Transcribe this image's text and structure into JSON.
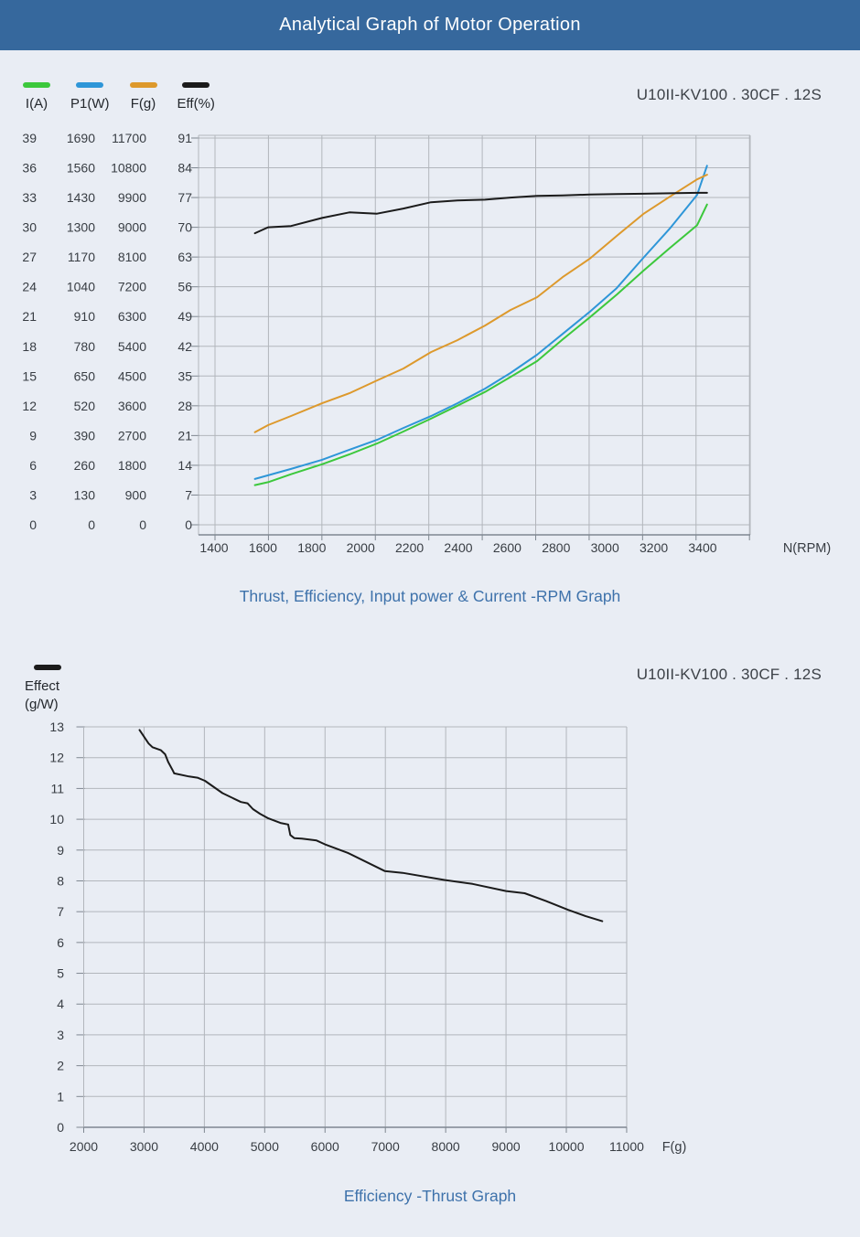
{
  "header": {
    "title": "Analytical Graph of Motor Operation"
  },
  "colors": {
    "header_bg": "#36689d",
    "background": "#e9edf4",
    "grid": "#b2b6bc",
    "axis": "#7f8791",
    "tick_text": "#383d43",
    "caption_text": "#3e72ab"
  },
  "chart_data": [
    {
      "type": "line",
      "id": "rpm-graph",
      "title": "Thrust, Efficiency, Input power & Current -RPM Graph",
      "model_label": "U10II-KV100 . 30CF . 12S",
      "x_label": "N(RPM)",
      "x_ticks": [
        1400,
        1600,
        1800,
        2000,
        2200,
        2400,
        2600,
        2800,
        3000,
        3200,
        3400
      ],
      "grid": {
        "x_lines": 11,
        "y_lines": 14,
        "legend_position": "top-left"
      },
      "x_rpm": [
        1567,
        1621,
        1715,
        1842,
        1954,
        2067,
        2175,
        2288,
        2396,
        2509,
        2613,
        2722,
        2827,
        2937,
        3048,
        3157,
        3265,
        3377,
        3418
      ],
      "series": [
        {
          "name": "I(A)",
          "color": "#3cc83c",
          "unit_per_div": 3,
          "axis_ticks": [
            39,
            36,
            33,
            30,
            27,
            24,
            21,
            18,
            15,
            12,
            9,
            6,
            3,
            0
          ],
          "values": [
            4.0,
            4.3,
            5.1,
            6.1,
            7.1,
            8.2,
            9.4,
            10.7,
            12.0,
            13.4,
            14.9,
            16.5,
            18.7,
            20.9,
            23.2,
            25.6,
            27.9,
            30.2,
            32.3
          ]
        },
        {
          "name": "P1(W)",
          "color": "#2e96d8",
          "unit_per_div": 130,
          "axis_ticks": [
            1690,
            1560,
            1430,
            1300,
            1170,
            1040,
            910,
            780,
            650,
            520,
            390,
            260,
            130,
            0
          ],
          "values": [
            200,
            216,
            244,
            284,
            328,
            371,
            423,
            475,
            531,
            595,
            663,
            743,
            834,
            930,
            1034,
            1166,
            1294,
            1441,
            1569
          ]
        },
        {
          "name": "F(g)",
          "color": "#dd992c",
          "unit_per_div": 900,
          "axis_ticks": [
            11700,
            10800,
            9900,
            9000,
            8100,
            7200,
            6300,
            5400,
            4500,
            3600,
            2700,
            1800,
            900,
            0
          ],
          "values": [
            2800,
            3014,
            3290,
            3677,
            3980,
            4368,
            4728,
            5225,
            5585,
            6027,
            6497,
            6884,
            7492,
            8045,
            8736,
            9400,
            9925,
            10450,
            10590
          ]
        },
        {
          "name": "Eff(%)",
          "color": "#1b1b1b",
          "unit_per_div": 7,
          "axis_ticks": [
            91,
            84,
            77,
            70,
            63,
            56,
            49,
            42,
            35,
            28,
            21,
            14,
            7,
            0
          ],
          "values": [
            68.6,
            70.0,
            70.3,
            72.2,
            73.5,
            73.2,
            74.4,
            75.9,
            76.3,
            76.5,
            77.0,
            77.4,
            77.5,
            77.7,
            77.8,
            77.9,
            78.0,
            78.1,
            78.1
          ]
        }
      ]
    },
    {
      "type": "line",
      "id": "thrust-graph",
      "title": "Efficiency -Thrust Graph",
      "model_label": "U10II-KV100 . 30CF . 12S",
      "legend_label": "Effect",
      "legend_unit": "(g/W)",
      "x_label": "F(g)",
      "x_ticks": [
        2000,
        3000,
        4000,
        5000,
        6000,
        7000,
        8000,
        9000,
        10000,
        11000
      ],
      "y_ticks": [
        13,
        12,
        11,
        10,
        9,
        8,
        7,
        6,
        5,
        4,
        3,
        2,
        1,
        0
      ],
      "grid": {
        "x_lines": 10,
        "y_lines": 14,
        "legend_position": "top-left"
      },
      "series": [
        {
          "name": "Effect (g/W)",
          "color": "#1b1b1b",
          "points": [
            [
              2925,
              12.9
            ],
            [
              3075,
              12.46
            ],
            [
              3140,
              12.34
            ],
            [
              3280,
              12.24
            ],
            [
              3350,
              12.11
            ],
            [
              3400,
              11.86
            ],
            [
              3480,
              11.57
            ],
            [
              3500,
              11.49
            ],
            [
              3745,
              11.39
            ],
            [
              3885,
              11.35
            ],
            [
              4010,
              11.25
            ],
            [
              4300,
              10.85
            ],
            [
              4605,
              10.56
            ],
            [
              4715,
              10.52
            ],
            [
              4805,
              10.33
            ],
            [
              4920,
              10.18
            ],
            [
              5060,
              10.03
            ],
            [
              5260,
              9.88
            ],
            [
              5390,
              9.83
            ],
            [
              5425,
              9.49
            ],
            [
              5490,
              9.39
            ],
            [
              5615,
              9.37
            ],
            [
              5860,
              9.31
            ],
            [
              5995,
              9.19
            ],
            [
              6375,
              8.91
            ],
            [
              6990,
              8.32
            ],
            [
              7285,
              8.26
            ],
            [
              7980,
              8.03
            ],
            [
              8445,
              7.9
            ],
            [
              9000,
              7.67
            ],
            [
              9310,
              7.6
            ],
            [
              9660,
              7.35
            ],
            [
              10025,
              7.06
            ],
            [
              10315,
              6.86
            ],
            [
              10595,
              6.69
            ]
          ]
        }
      ]
    }
  ]
}
